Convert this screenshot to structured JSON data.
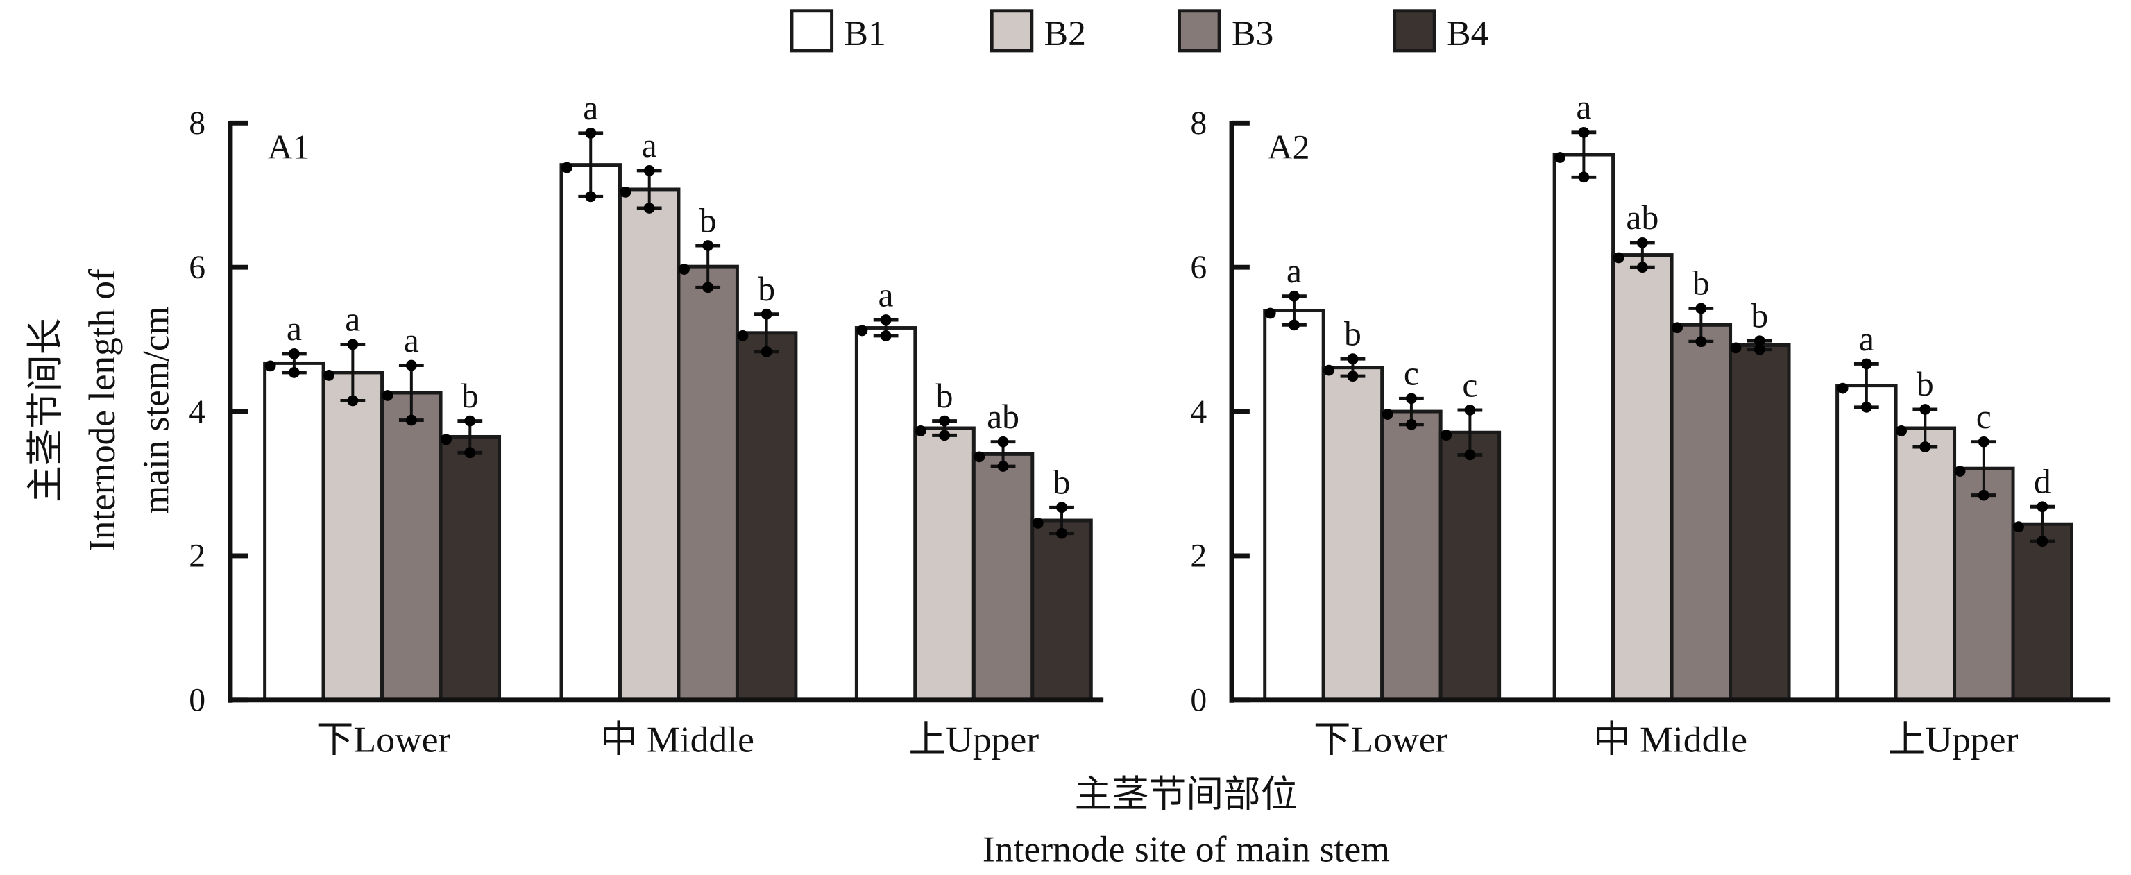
{
  "chart_data": {
    "type": "bar",
    "legend": {
      "position": "top-center",
      "entries": [
        {
          "name": "B1",
          "color": "#ffffff"
        },
        {
          "name": "B2",
          "color": "#cfc8c5"
        },
        {
          "name": "B3",
          "color": "#857a78"
        },
        {
          "name": "B4",
          "color": "#3b3330"
        }
      ]
    },
    "ylabel_lines": [
      "主茎节间长",
      "Internode length of",
      "main stem/cm"
    ],
    "xlabel_lines": [
      "主茎节间部位",
      "Internode site of main stem"
    ],
    "ylim": [
      0,
      8
    ],
    "yticks": [
      0,
      2,
      4,
      6,
      8
    ],
    "grid": false,
    "categories": [
      "下Lower",
      "中 Middle",
      "上Upper"
    ],
    "panels": [
      {
        "label": "A1",
        "series": [
          {
            "name": "B1",
            "values": [
              4.67,
              7.42,
              5.16
            ],
            "errors": [
              0.13,
              0.44,
              0.11
            ],
            "significance": [
              "a",
              "a",
              "a"
            ]
          },
          {
            "name": "B2",
            "values": [
              4.54,
              7.08,
              3.77
            ],
            "errors": [
              0.39,
              0.26,
              0.1
            ],
            "significance": [
              "a",
              "a",
              "b"
            ]
          },
          {
            "name": "B3",
            "values": [
              4.26,
              6.01,
              3.41
            ],
            "errors": [
              0.38,
              0.29,
              0.17
            ],
            "significance": [
              "a",
              "b",
              "ab"
            ]
          },
          {
            "name": "B4",
            "values": [
              3.65,
              5.09,
              2.49
            ],
            "errors": [
              0.22,
              0.26,
              0.18
            ],
            "significance": [
              "b",
              "b",
              "b"
            ]
          }
        ]
      },
      {
        "label": "A2",
        "series": [
          {
            "name": "B1",
            "values": [
              5.4,
              7.56,
              4.36
            ],
            "errors": [
              0.2,
              0.31,
              0.3
            ],
            "significance": [
              "a",
              "a",
              "a"
            ]
          },
          {
            "name": "B2",
            "values": [
              4.61,
              6.17,
              3.77
            ],
            "errors": [
              0.12,
              0.17,
              0.26
            ],
            "significance": [
              "b",
              "ab",
              "b"
            ]
          },
          {
            "name": "B3",
            "values": [
              4.0,
              5.2,
              3.21
            ],
            "errors": [
              0.18,
              0.23,
              0.37
            ],
            "significance": [
              "c",
              "b",
              "c"
            ]
          },
          {
            "name": "B4",
            "values": [
              3.71,
              4.92,
              2.44
            ],
            "errors": [
              0.31,
              0.06,
              0.24
            ],
            "significance": [
              "c",
              "b",
              "d"
            ]
          }
        ]
      }
    ]
  }
}
